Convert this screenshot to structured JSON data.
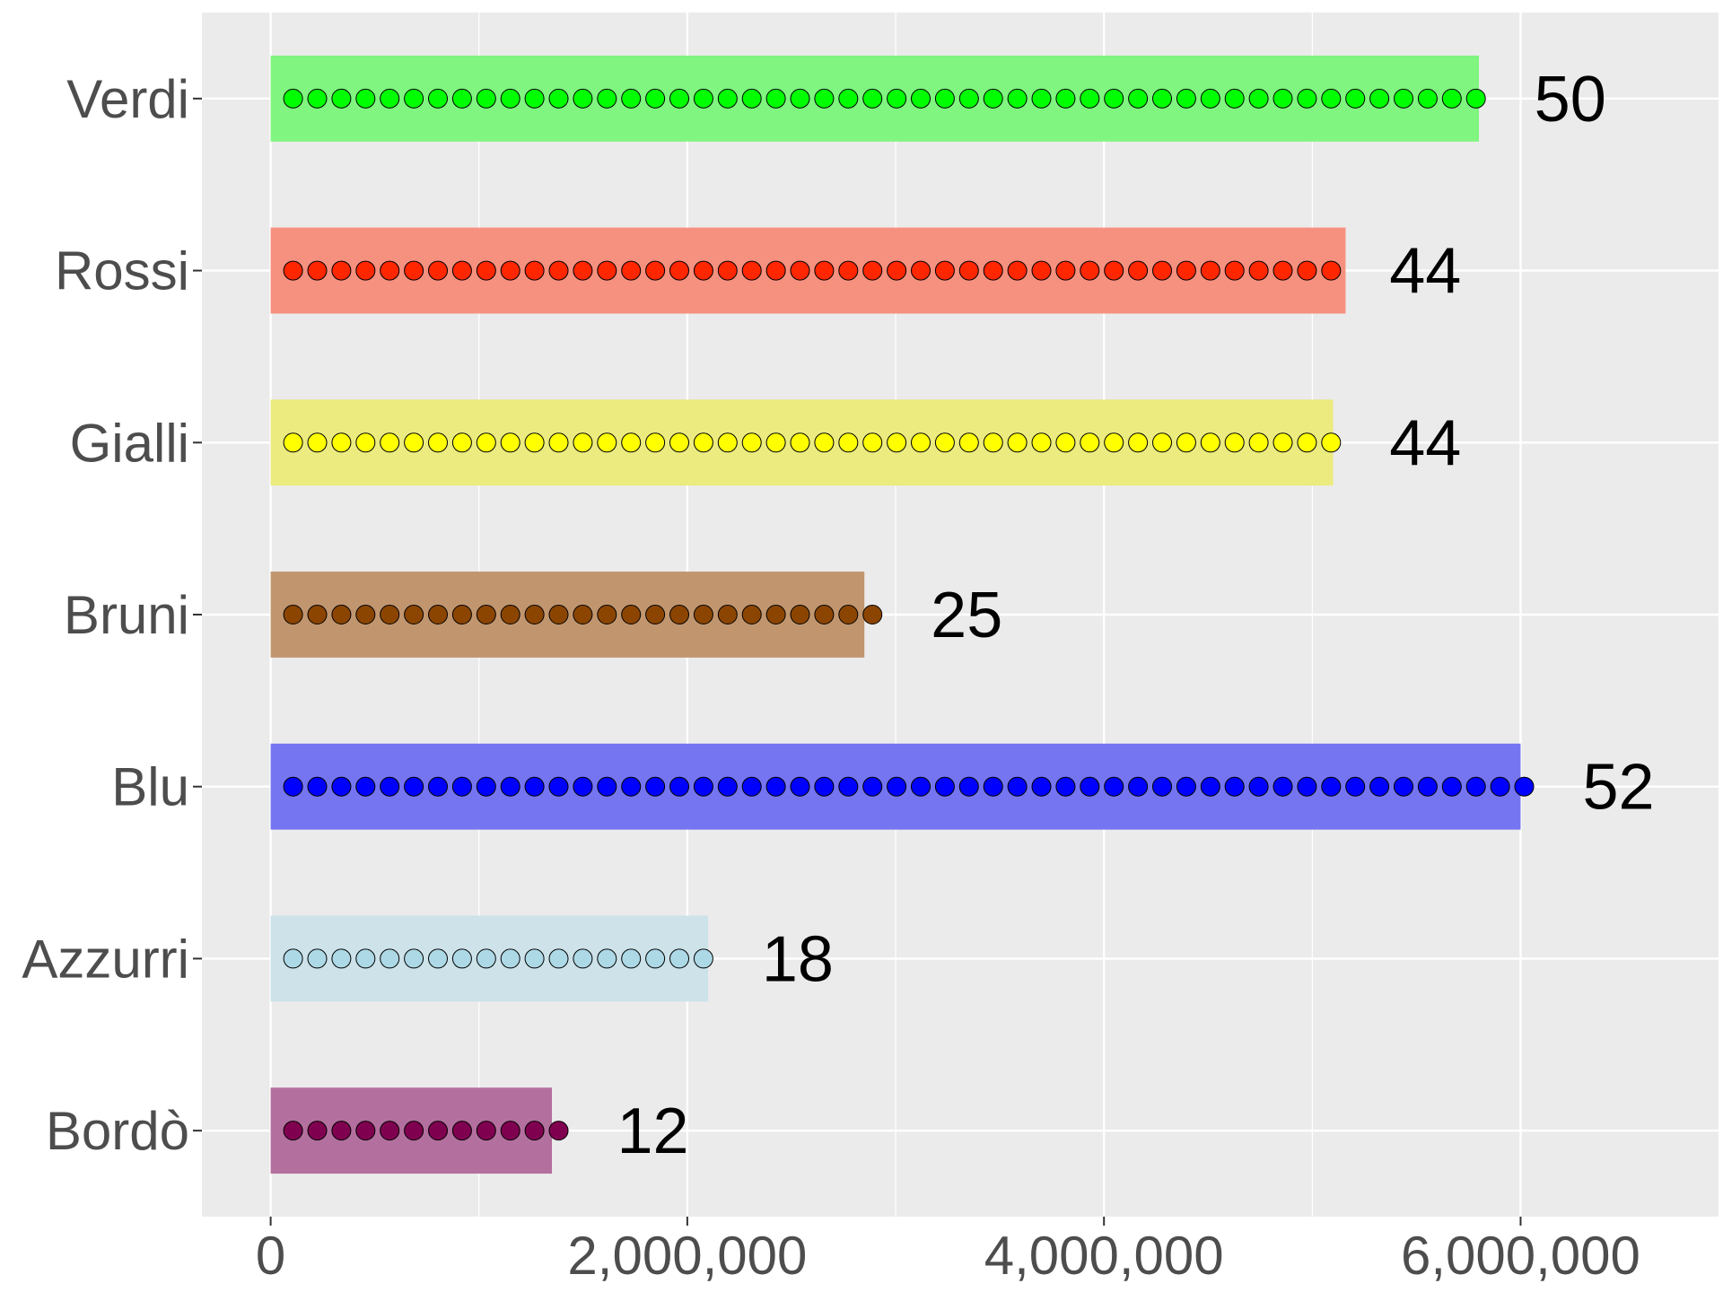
{
  "chart_data": {
    "type": "bar",
    "orientation": "horizontal",
    "categories": [
      "Verdi",
      "Rossi",
      "Gialli",
      "Bruni",
      "Blu",
      "Azzurri",
      "Bordò"
    ],
    "values": [
      5800000,
      5160000,
      5100000,
      2850000,
      6000000,
      2100000,
      1350000
    ],
    "seat_counts": [
      50,
      44,
      44,
      25,
      52,
      18,
      12
    ],
    "value_labels": [
      "50",
      "44",
      "44",
      "25",
      "52",
      "18",
      "12"
    ],
    "colors": [
      "#00ff00",
      "#ff2600",
      "#ffff00",
      "#8b4500",
      "#0000ff",
      "#add8e6",
      "#800050"
    ],
    "bar_colors": [
      "#80f580",
      "#f6917f",
      "#ebeb80",
      "#c1966f",
      "#7575f2",
      "#cde2e9",
      "#b3709e"
    ],
    "xlim": [
      -330000,
      6950000
    ],
    "x_ticks": [
      0,
      2000000,
      4000000,
      6000000
    ],
    "x_tick_labels": [
      "0",
      "2,000,000",
      "4,000,000",
      "6,000,000"
    ],
    "title": "",
    "xlabel": "",
    "ylabel": "",
    "grid": true,
    "legend": "none"
  }
}
